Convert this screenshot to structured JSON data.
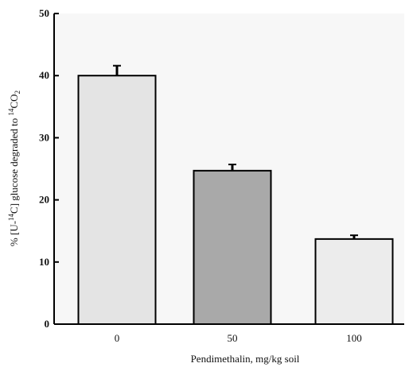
{
  "chart_data": {
    "type": "bar",
    "categories": [
      "0",
      "50",
      "100"
    ],
    "values": [
      40,
      24.7,
      13.7
    ],
    "errors": [
      1.6,
      1.0,
      0.6
    ],
    "xlabel": "Pendimethalin, mg/kg soil",
    "ylabel": {
      "prefix": "% [U-",
      "sup1": "14",
      "middle": "C] glucose degraded to ",
      "sup2": "14",
      "co": "CO",
      "sub": "2"
    },
    "ylim": [
      0,
      50
    ],
    "yticks": [
      "0",
      "10",
      "20",
      "30",
      "40",
      "50"
    ],
    "grid": false,
    "bar_colors": [
      "#e4e4e4",
      "#a9a9a9",
      "#ececec"
    ],
    "edge_color": "#000000"
  }
}
